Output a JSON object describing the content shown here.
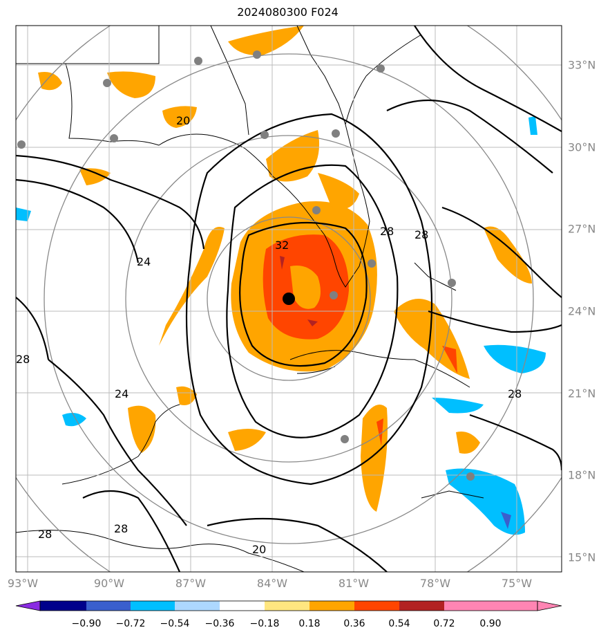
{
  "title": "2024080300 F024",
  "axes": {
    "lon_labels": [
      "93°W",
      "90°W",
      "87°W",
      "84°W",
      "81°W",
      "78°W",
      "75°W"
    ],
    "lat_labels": [
      "33°N",
      "30°N",
      "27°N",
      "24°N",
      "21°N",
      "18°N",
      "15°N"
    ]
  },
  "colorbar": {
    "ticks": [
      "−0.90",
      "−0.72",
      "−0.54",
      "−0.36",
      "−0.18",
      "0.18",
      "0.36",
      "0.54",
      "0.72",
      "0.90"
    ],
    "colors": [
      "#8a2be2",
      "#00008b",
      "#3a5fcd",
      "#00bfff",
      "#add8ff",
      "#ffffff",
      "#ffe680",
      "#ffa500",
      "#ff4500",
      "#b22222",
      "#ff85b3"
    ]
  },
  "contour_labels": [
    "32",
    "28",
    "24",
    "20",
    "28",
    "24",
    "28",
    "20",
    "28",
    "28",
    "28"
  ],
  "storm_center": {
    "lat": "24.4°N",
    "lon": "83.5°W"
  }
}
